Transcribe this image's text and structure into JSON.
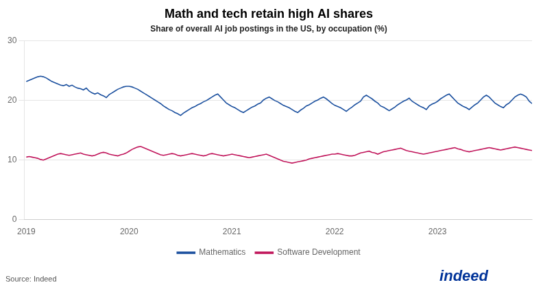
{
  "chart_data": {
    "type": "line",
    "title": "Math and tech retain high AI shares",
    "subtitle": "Share of overall AI job postings in the US, by occupation (%)",
    "source": "Source: Indeed",
    "annotations": [
      {
        "text": "indeed",
        "color": "#003399"
      }
    ],
    "xlim": [
      2018.98,
      2023.92
    ],
    "xticks": [
      2019,
      2020,
      2021,
      2022,
      2023
    ],
    "ylim": [
      0,
      30
    ],
    "yticks": [
      0,
      10,
      20,
      30
    ],
    "grid": true,
    "legend": "bottom",
    "x": [
      2019,
      2019.0278,
      2019.0556,
      2019.0834,
      2019.1112,
      2019.139,
      2019.1668,
      2019.1946,
      2019.2224,
      2019.2502,
      2019.278,
      2019.3058,
      2019.3336,
      2019.3614,
      2019.3892,
      2019.4169,
      2019.4447,
      2019.4725,
      2019.5003,
      2019.5281,
      2019.5559,
      2019.5837,
      2019.6115,
      2019.6393,
      2019.6671,
      2019.6949,
      2019.7227,
      2019.7505,
      2019.7783,
      2019.8061,
      2019.8339,
      2019.8617,
      2019.8895,
      2019.9173,
      2019.9451,
      2019.9729,
      2020.0007,
      2020.0285,
      2020.0563,
      2020.0841,
      2020.1119,
      2020.1397,
      2020.1675,
      2020.1953,
      2020.2231,
      2020.2508,
      2020.2786,
      2020.3064,
      2020.3342,
      2020.362,
      2020.3898,
      2020.4176,
      2020.4454,
      2020.4732,
      2020.501,
      2020.5288,
      2020.5566,
      2020.5844,
      2020.6122,
      2020.64,
      2020.6678,
      2020.6956,
      2020.7234,
      2020.7512,
      2020.779,
      2020.8068,
      2020.8346,
      2020.8624,
      2020.8902,
      2020.918,
      2020.9458,
      2020.9736,
      2021.0014,
      2021.0292,
      2021.0569,
      2021.0847,
      2021.1125,
      2021.1403,
      2021.1681,
      2021.1959,
      2021.2237,
      2021.2515,
      2021.2793,
      2021.3071,
      2021.3349,
      2021.3627,
      2021.3905,
      2021.4183,
      2021.4461,
      2021.4739,
      2021.5017,
      2021.5295,
      2021.5573,
      2021.5851,
      2021.6129,
      2021.6407,
      2021.6685,
      2021.6963,
      2021.7241,
      2021.7519,
      2021.7797,
      2021.8075,
      2021.8353,
      2021.8631,
      2021.8908,
      2021.9186,
      2021.9464,
      2021.9742,
      2022.002,
      2022.0298,
      2022.0576,
      2022.0854,
      2022.1132,
      2022.141,
      2022.1688,
      2022.1966,
      2022.2244,
      2022.2522,
      2022.28,
      2022.3078,
      2022.3356,
      2022.3634,
      2022.3912,
      2022.419,
      2022.4468,
      2022.4746,
      2022.5024,
      2022.5302,
      2022.558,
      2022.5858,
      2022.6136,
      2022.6414,
      2022.6692,
      2022.6969,
      2022.7247,
      2022.7525,
      2022.7803,
      2022.8081,
      2022.8359,
      2022.8637,
      2022.8915,
      2022.9193,
      2022.9471,
      2022.9749,
      2023.0027,
      2023.0305,
      2023.0583,
      2023.0861,
      2023.1139,
      2023.1417,
      2023.1695,
      2023.1973,
      2023.2251,
      2023.2529,
      2023.2807,
      2023.3085,
      2023.3363,
      2023.3641,
      2023.3919,
      2023.4197,
      2023.4475,
      2023.4753,
      2023.5031,
      2023.5308,
      2023.5586,
      2023.5864,
      2023.6142,
      2023.642,
      2023.6698,
      2023.6976,
      2023.7254,
      2023.7532,
      2023.781,
      2023.8088,
      2023.8366,
      2023.8644,
      2023.8922,
      2023.92
    ],
    "series": [
      {
        "name": "Mathematics",
        "color": "#1a4f9e",
        "values": [
          23.2,
          23.4,
          23.6,
          23.8,
          24.0,
          24.1,
          24.0,
          23.8,
          23.5,
          23.2,
          23.0,
          22.8,
          22.6,
          22.5,
          22.7,
          22.4,
          22.6,
          22.3,
          22.1,
          22.0,
          21.8,
          22.1,
          21.6,
          21.3,
          21.1,
          21.3,
          21.0,
          20.8,
          20.5,
          21.0,
          21.3,
          21.6,
          21.9,
          22.1,
          22.3,
          22.4,
          22.4,
          22.3,
          22.1,
          21.9,
          21.6,
          21.3,
          21.0,
          20.7,
          20.4,
          20.1,
          19.8,
          19.5,
          19.1,
          18.8,
          18.5,
          18.3,
          18.0,
          17.8,
          17.5,
          17.9,
          18.2,
          18.5,
          18.8,
          19.0,
          19.3,
          19.5,
          19.8,
          20.0,
          20.3,
          20.6,
          20.9,
          21.1,
          20.6,
          20.1,
          19.6,
          19.3,
          19.0,
          18.8,
          18.5,
          18.2,
          18.0,
          18.3,
          18.6,
          18.9,
          19.1,
          19.4,
          19.6,
          20.1,
          20.4,
          20.6,
          20.3,
          20.0,
          19.8,
          19.5,
          19.2,
          19.0,
          18.8,
          18.5,
          18.2,
          18.0,
          18.4,
          18.7,
          19.1,
          19.3,
          19.6,
          19.9,
          20.1,
          20.4,
          20.6,
          20.3,
          19.9,
          19.5,
          19.2,
          19.0,
          18.8,
          18.5,
          18.2,
          18.6,
          18.9,
          19.3,
          19.6,
          19.9,
          20.6,
          20.9,
          20.6,
          20.3,
          19.9,
          19.6,
          19.1,
          18.9,
          18.6,
          18.3,
          18.6,
          18.9,
          19.3,
          19.6,
          19.9,
          20.1,
          20.4,
          19.9,
          19.6,
          19.3,
          19.0,
          18.8,
          18.5,
          19.1,
          19.4,
          19.6,
          19.9,
          20.3,
          20.6,
          20.9,
          21.1,
          20.6,
          20.1,
          19.6,
          19.3,
          19.0,
          18.8,
          18.5,
          18.9,
          19.3,
          19.6,
          20.1,
          20.6,
          20.9,
          20.6,
          20.1,
          19.6,
          19.3,
          19.0,
          18.8,
          19.3,
          19.6,
          20.1,
          20.6,
          20.9,
          21.1,
          20.9,
          20.6,
          19.9,
          19.5
        ]
      },
      {
        "name": "Software Development",
        "color": "#c0145a",
        "values": [
          10.5,
          10.6,
          10.5,
          10.4,
          10.3,
          10.1,
          10.0,
          10.2,
          10.4,
          10.6,
          10.8,
          11.0,
          11.1,
          11.0,
          10.9,
          10.8,
          10.9,
          11.0,
          11.1,
          11.2,
          11.0,
          10.9,
          10.8,
          10.7,
          10.8,
          11.0,
          11.2,
          11.3,
          11.2,
          11.0,
          10.9,
          10.8,
          10.7,
          10.9,
          11.0,
          11.2,
          11.5,
          11.8,
          12.0,
          12.2,
          12.3,
          12.1,
          11.9,
          11.7,
          11.5,
          11.3,
          11.1,
          10.9,
          10.8,
          10.9,
          11.0,
          11.1,
          11.0,
          10.8,
          10.7,
          10.8,
          10.9,
          11.0,
          11.1,
          11.0,
          10.9,
          10.8,
          10.7,
          10.8,
          11.0,
          11.1,
          11.0,
          10.9,
          10.8,
          10.7,
          10.8,
          10.9,
          11.0,
          10.9,
          10.8,
          10.7,
          10.6,
          10.5,
          10.4,
          10.5,
          10.6,
          10.7,
          10.8,
          10.9,
          11.0,
          10.8,
          10.6,
          10.4,
          10.2,
          10.0,
          9.8,
          9.7,
          9.6,
          9.5,
          9.6,
          9.7,
          9.8,
          9.9,
          10.0,
          10.2,
          10.3,
          10.4,
          10.5,
          10.6,
          10.7,
          10.8,
          10.9,
          11.0,
          11.0,
          11.1,
          11.0,
          10.9,
          10.8,
          10.7,
          10.7,
          10.8,
          11.0,
          11.2,
          11.3,
          11.4,
          11.5,
          11.3,
          11.2,
          11.0,
          11.2,
          11.4,
          11.5,
          11.6,
          11.7,
          11.8,
          11.9,
          12.0,
          11.8,
          11.6,
          11.5,
          11.4,
          11.3,
          11.2,
          11.1,
          11.0,
          11.1,
          11.2,
          11.3,
          11.4,
          11.5,
          11.6,
          11.7,
          11.8,
          11.9,
          12.0,
          12.1,
          11.9,
          11.8,
          11.6,
          11.5,
          11.4,
          11.5,
          11.6,
          11.7,
          11.8,
          11.9,
          12.0,
          12.1,
          12.0,
          11.9,
          11.8,
          11.7,
          11.8,
          11.9,
          12.0,
          12.1,
          12.2,
          12.1,
          12.0,
          11.9,
          11.8,
          11.7,
          11.6
        ]
      }
    ]
  }
}
